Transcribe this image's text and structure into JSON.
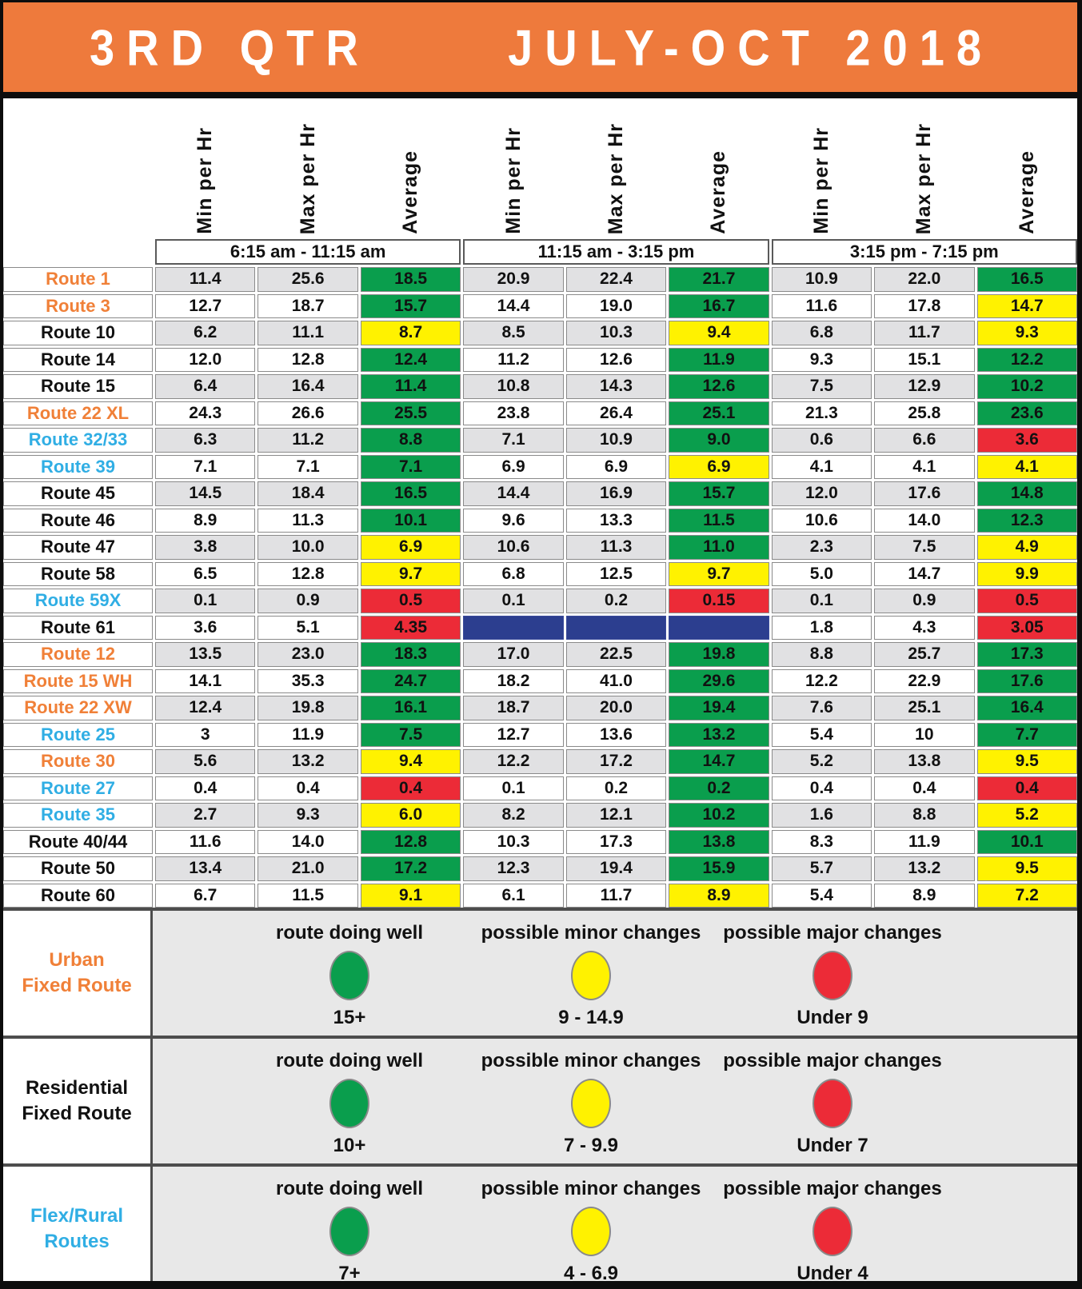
{
  "title": {
    "left": "3RD QTR",
    "right": "JULY-OCT 2018"
  },
  "metric_labels": [
    "Min per Hr",
    "Max per Hr",
    "Average"
  ],
  "periods": [
    "6:15 am - 11:15 am",
    "11:15 am - 3:15 pm",
    "3:15 pm - 7:15 pm"
  ],
  "colors": {
    "header_orange": "#ee7a3c",
    "green": "#0a9e4d",
    "yellow": "#fff200",
    "red": "#ec2b37",
    "no_service_blue": "#2c3e8f",
    "urban_route_text": "#f08038",
    "flex_route_text": "#30aee4",
    "row_gray": "#e1e1e3",
    "legend_bg": "#e8e8e8"
  },
  "routes": [
    {
      "name": "Route 1",
      "color": "orange",
      "cells": [
        [
          "11.4",
          "25.6",
          "18.5",
          "G"
        ],
        [
          "20.9",
          "22.4",
          "21.7",
          "G"
        ],
        [
          "10.9",
          "22.0",
          "16.5",
          "G"
        ]
      ]
    },
    {
      "name": "Route 3",
      "color": "orange",
      "cells": [
        [
          "12.7",
          "18.7",
          "15.7",
          "G"
        ],
        [
          "14.4",
          "19.0",
          "16.7",
          "G"
        ],
        [
          "11.6",
          "17.8",
          "14.7",
          "Y"
        ]
      ]
    },
    {
      "name": "Route 10",
      "color": "black",
      "cells": [
        [
          "6.2",
          "11.1",
          "8.7",
          "Y"
        ],
        [
          "8.5",
          "10.3",
          "9.4",
          "Y"
        ],
        [
          "6.8",
          "11.7",
          "9.3",
          "Y"
        ]
      ]
    },
    {
      "name": "Route 14",
      "color": "black",
      "cells": [
        [
          "12.0",
          "12.8",
          "12.4",
          "G"
        ],
        [
          "11.2",
          "12.6",
          "11.9",
          "G"
        ],
        [
          "9.3",
          "15.1",
          "12.2",
          "G"
        ]
      ]
    },
    {
      "name": "Route 15",
      "color": "black",
      "cells": [
        [
          "6.4",
          "16.4",
          "11.4",
          "G"
        ],
        [
          "10.8",
          "14.3",
          "12.6",
          "G"
        ],
        [
          "7.5",
          "12.9",
          "10.2",
          "G"
        ]
      ]
    },
    {
      "name": "Route 22 XL",
      "color": "orange",
      "cells": [
        [
          "24.3",
          "26.6",
          "25.5",
          "G"
        ],
        [
          "23.8",
          "26.4",
          "25.1",
          "G"
        ],
        [
          "21.3",
          "25.8",
          "23.6",
          "G"
        ]
      ]
    },
    {
      "name": "Route 32/33",
      "color": "cyan",
      "cells": [
        [
          "6.3",
          "11.2",
          "8.8",
          "G"
        ],
        [
          "7.1",
          "10.9",
          "9.0",
          "G"
        ],
        [
          "0.6",
          "6.6",
          "3.6",
          "R"
        ]
      ]
    },
    {
      "name": "Route 39",
      "color": "cyan",
      "cells": [
        [
          "7.1",
          "7.1",
          "7.1",
          "G"
        ],
        [
          "6.9",
          "6.9",
          "6.9",
          "Y"
        ],
        [
          "4.1",
          "4.1",
          "4.1",
          "Y"
        ]
      ]
    },
    {
      "name": "Route 45",
      "color": "black",
      "cells": [
        [
          "14.5",
          "18.4",
          "16.5",
          "G"
        ],
        [
          "14.4",
          "16.9",
          "15.7",
          "G"
        ],
        [
          "12.0",
          "17.6",
          "14.8",
          "G"
        ]
      ]
    },
    {
      "name": "Route 46",
      "color": "black",
      "cells": [
        [
          "8.9",
          "11.3",
          "10.1",
          "G"
        ],
        [
          "9.6",
          "13.3",
          "11.5",
          "G"
        ],
        [
          "10.6",
          "14.0",
          "12.3",
          "G"
        ]
      ]
    },
    {
      "name": "Route 47",
      "color": "black",
      "cells": [
        [
          "3.8",
          "10.0",
          "6.9",
          "Y"
        ],
        [
          "10.6",
          "11.3",
          "11.0",
          "G"
        ],
        [
          "2.3",
          "7.5",
          "4.9",
          "Y"
        ]
      ]
    },
    {
      "name": "Route 58",
      "color": "black",
      "cells": [
        [
          "6.5",
          "12.8",
          "9.7",
          "Y"
        ],
        [
          "6.8",
          "12.5",
          "9.7",
          "Y"
        ],
        [
          "5.0",
          "14.7",
          "9.9",
          "Y"
        ]
      ]
    },
    {
      "name": "Route 59X",
      "color": "cyan",
      "cells": [
        [
          "0.1",
          "0.9",
          "0.5",
          "R"
        ],
        [
          "0.1",
          "0.2",
          "0.15",
          "R"
        ],
        [
          "0.1",
          "0.9",
          "0.5",
          "R"
        ]
      ]
    },
    {
      "name": "Route 61",
      "color": "black",
      "cells": [
        [
          "3.6",
          "5.1",
          "4.35",
          "R"
        ],
        [
          "",
          "",
          "",
          "B"
        ],
        [
          "1.8",
          "4.3",
          "3.05",
          "R"
        ]
      ]
    },
    {
      "name": "Route 12",
      "color": "orange",
      "cells": [
        [
          "13.5",
          "23.0",
          "18.3",
          "G"
        ],
        [
          "17.0",
          "22.5",
          "19.8",
          "G"
        ],
        [
          "8.8",
          "25.7",
          "17.3",
          "G"
        ]
      ]
    },
    {
      "name": "Route 15 WH",
      "color": "orange",
      "cells": [
        [
          "14.1",
          "35.3",
          "24.7",
          "G"
        ],
        [
          "18.2",
          "41.0",
          "29.6",
          "G"
        ],
        [
          "12.2",
          "22.9",
          "17.6",
          "G"
        ]
      ]
    },
    {
      "name": "Route 22 XW",
      "color": "orange",
      "cells": [
        [
          "12.4",
          "19.8",
          "16.1",
          "G"
        ],
        [
          "18.7",
          "20.0",
          "19.4",
          "G"
        ],
        [
          "7.6",
          "25.1",
          "16.4",
          "G"
        ]
      ]
    },
    {
      "name": "Route 25",
      "color": "cyan",
      "cells": [
        [
          "3",
          "11.9",
          "7.5",
          "G"
        ],
        [
          "12.7",
          "13.6",
          "13.2",
          "G"
        ],
        [
          "5.4",
          "10",
          "7.7",
          "G"
        ]
      ]
    },
    {
      "name": "Route 30",
      "color": "orange",
      "cells": [
        [
          "5.6",
          "13.2",
          "9.4",
          "Y"
        ],
        [
          "12.2",
          "17.2",
          "14.7",
          "G"
        ],
        [
          "5.2",
          "13.8",
          "9.5",
          "Y"
        ]
      ]
    },
    {
      "name": "Route 27",
      "color": "cyan",
      "cells": [
        [
          "0.4",
          "0.4",
          "0.4",
          "R"
        ],
        [
          "0.1",
          "0.2",
          "0.2",
          "G"
        ],
        [
          "0.4",
          "0.4",
          "0.4",
          "R"
        ]
      ]
    },
    {
      "name": "Route 35",
      "color": "cyan",
      "cells": [
        [
          "2.7",
          "9.3",
          "6.0",
          "Y"
        ],
        [
          "8.2",
          "12.1",
          "10.2",
          "G"
        ],
        [
          "1.6",
          "8.8",
          "5.2",
          "Y"
        ]
      ]
    },
    {
      "name": "Route 40/44",
      "color": "black",
      "cells": [
        [
          "11.6",
          "14.0",
          "12.8",
          "G"
        ],
        [
          "10.3",
          "17.3",
          "13.8",
          "G"
        ],
        [
          "8.3",
          "11.9",
          "10.1",
          "G"
        ]
      ]
    },
    {
      "name": "Route 50",
      "color": "black",
      "cells": [
        [
          "13.4",
          "21.0",
          "17.2",
          "G"
        ],
        [
          "12.3",
          "19.4",
          "15.9",
          "G"
        ],
        [
          "5.7",
          "13.2",
          "9.5",
          "Y"
        ]
      ]
    },
    {
      "name": "Route 60",
      "color": "black",
      "cells": [
        [
          "6.7",
          "11.5",
          "9.1",
          "Y"
        ],
        [
          "6.1",
          "11.7",
          "8.9",
          "Y"
        ],
        [
          "5.4",
          "8.9",
          "7.2",
          "Y"
        ]
      ]
    }
  ],
  "legend": [
    {
      "label_lines": [
        "Urban",
        "Fixed Route"
      ],
      "label_color": "orange",
      "items": [
        {
          "title": "route doing well",
          "circle": "green",
          "range": "15+"
        },
        {
          "title": "possible minor changes",
          "circle": "yellow",
          "range": "9 - 14.9"
        },
        {
          "title": "possible major changes",
          "circle": "red",
          "range": "Under 9"
        }
      ]
    },
    {
      "label_lines": [
        "Residential",
        "Fixed Route"
      ],
      "label_color": "black",
      "items": [
        {
          "title": "route doing well",
          "circle": "green",
          "range": "10+"
        },
        {
          "title": "possible minor changes",
          "circle": "yellow",
          "range": "7 - 9.9"
        },
        {
          "title": "possible major changes",
          "circle": "red",
          "range": "Under 7"
        }
      ]
    },
    {
      "label_lines": [
        "Flex/Rural",
        "Routes"
      ],
      "label_color": "cyan",
      "items": [
        {
          "title": "route doing well",
          "circle": "green",
          "range": "7+"
        },
        {
          "title": "possible minor changes",
          "circle": "yellow",
          "range": "4 - 6.9"
        },
        {
          "title": "possible major changes",
          "circle": "red",
          "range": "Under 4"
        }
      ]
    }
  ]
}
